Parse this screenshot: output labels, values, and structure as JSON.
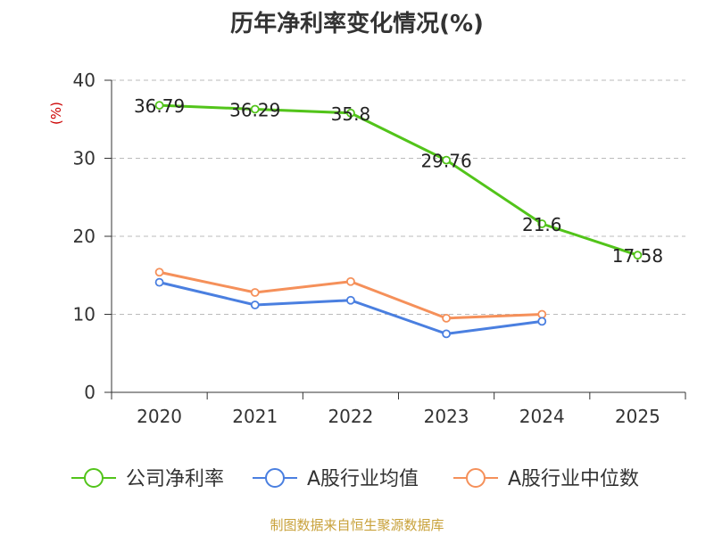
{
  "colors": {
    "net_margin": "#52c41a",
    "industry_avg": "#4a7fe0",
    "industry_median": "#f5905a",
    "axis": "#333333",
    "grid": "#bbbbbb",
    "unit": "#cc0000",
    "source": "#c8a13a"
  },
  "chart_data": {
    "type": "line",
    "title": "历年净利率变化情况(%)",
    "ylabel": "(%)",
    "xlabel": "",
    "categories": [
      "2020",
      "2021",
      "2022",
      "2023",
      "2024",
      "2025"
    ],
    "ylim": [
      0,
      40
    ],
    "yticks": [
      0,
      10,
      20,
      30,
      40
    ],
    "grid": true,
    "legend_position": "bottom",
    "series": [
      {
        "name": "公司净利率",
        "color": "#52c41a",
        "values": [
          36.79,
          36.29,
          35.8,
          29.76,
          21.6,
          17.58
        ],
        "labels": [
          "36.79",
          "36.29",
          "35.8",
          "29.76",
          "21.6",
          "17.58"
        ]
      },
      {
        "name": "A股行业均值",
        "color": "#4a7fe0",
        "values": [
          14.1,
          11.2,
          11.8,
          7.5,
          9.1,
          null
        ]
      },
      {
        "name": "A股行业中位数",
        "color": "#f5905a",
        "values": [
          15.4,
          12.8,
          14.2,
          9.5,
          10.0,
          null
        ]
      }
    ]
  },
  "source": "制图数据来自恒生聚源数据库"
}
